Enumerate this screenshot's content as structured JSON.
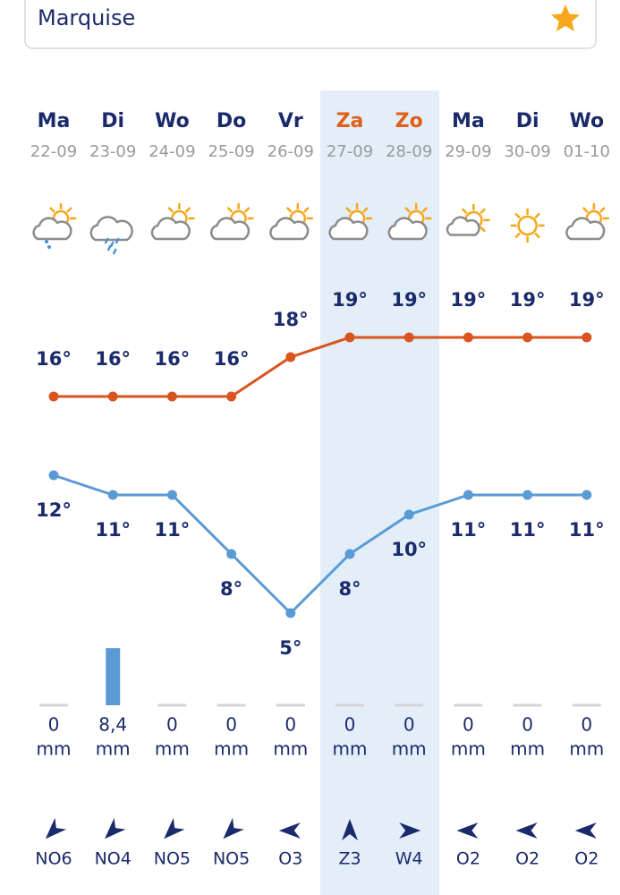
{
  "header": {
    "location": "Marquise"
  },
  "days": [
    "Ma",
    "Di",
    "Wo",
    "Do",
    "Vr",
    "Za",
    "Zo",
    "Ma",
    "Di",
    "Wo"
  ],
  "dates": [
    "22-09",
    "23-09",
    "24-09",
    "25-09",
    "26-09",
    "27-09",
    "28-09",
    "29-09",
    "30-09",
    "01-10"
  ],
  "temperature_max": {
    "values": [
      16,
      16,
      16,
      16,
      18,
      19,
      19,
      19,
      19,
      19
    ],
    "value_labels": [
      "16°",
      "16°",
      "16°",
      "16°",
      "18°",
      "19°",
      "19°",
      "19°",
      "19°",
      "19°"
    ],
    "color": "#d9541e"
  },
  "temperature_min": {
    "values": [
      12,
      11,
      11,
      8,
      5,
      8,
      10,
      11,
      11,
      11
    ],
    "value_labels": [
      "12°",
      "11°",
      "11°",
      "8°",
      "5°",
      "8°",
      "10°",
      "11°",
      "11°",
      "11°"
    ],
    "color": "#5b9bd5"
  },
  "precipitation": {
    "values": [
      0,
      8.4,
      0,
      0,
      0,
      0,
      0,
      0,
      0,
      0
    ],
    "value_labels": [
      "0",
      "8,4",
      "0",
      "0",
      "0",
      "0",
      "0",
      "0",
      "0",
      "0"
    ],
    "unit": "mm",
    "color": "#5b9bd5"
  },
  "wind": [
    "NO6",
    "NO4",
    "NO5",
    "NO5",
    "O3",
    "Z3",
    "W4",
    "O2",
    "O2",
    "O2"
  ]
}
